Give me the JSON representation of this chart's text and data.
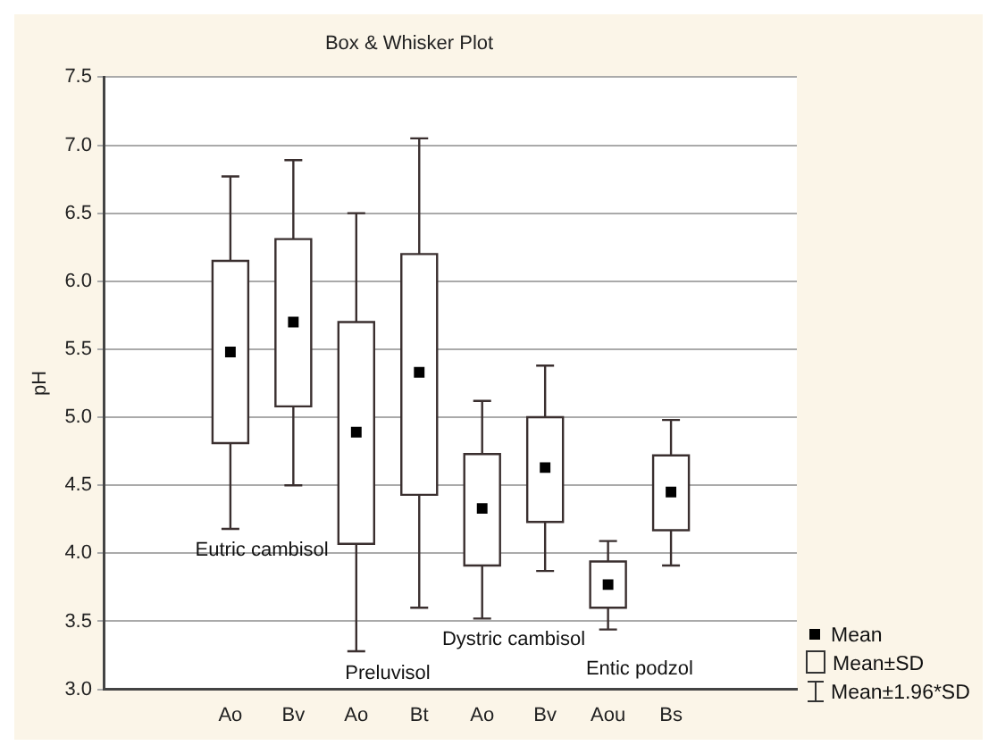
{
  "chart_data": {
    "type": "box",
    "title": "Box & Whisker Plot",
    "ylabel": "pH",
    "categories": [
      null,
      "Ao",
      "Bv",
      "Ao",
      "Bt",
      "Ao",
      "Bv",
      "Aou",
      "Bs",
      null
    ],
    "boxes": [
      null,
      {
        "low": 4.18,
        "q1": 4.81,
        "q3": 6.15,
        "high": 6.77,
        "mean": 5.48
      },
      {
        "low": 4.5,
        "q1": 5.08,
        "q3": 6.31,
        "high": 6.89,
        "mean": 5.7
      },
      {
        "low": 3.28,
        "q1": 4.07,
        "q3": 5.7,
        "high": 6.5,
        "mean": 4.89
      },
      {
        "low": 3.6,
        "q1": 4.43,
        "q3": 6.2,
        "high": 7.05,
        "mean": 5.33
      },
      {
        "low": 3.52,
        "q1": 3.91,
        "q3": 4.73,
        "high": 5.12,
        "mean": 4.33
      },
      {
        "low": 3.87,
        "q1": 4.23,
        "q3": 5.0,
        "high": 5.38,
        "mean": 4.63
      },
      {
        "low": 3.44,
        "q1": 3.6,
        "q3": 3.94,
        "high": 4.09,
        "mean": 3.77
      },
      {
        "low": 3.91,
        "q1": 4.17,
        "q3": 4.72,
        "high": 4.98,
        "mean": 4.45
      },
      null
    ],
    "color": "#ffffff",
    "ylim": [
      3,
      7.5
    ],
    "yticks": [
      {
        "value": 3,
        "label": "3.0"
      },
      {
        "value": 3.5,
        "label": "3.5"
      },
      {
        "value": 4,
        "label": "4.0"
      },
      {
        "value": 4.5,
        "label": "4.5"
      },
      {
        "value": 5,
        "label": "5.0"
      },
      {
        "value": 5.5,
        "label": "5.5"
      },
      {
        "value": 6,
        "label": "6.0"
      },
      {
        "value": 6.5,
        "label": "6.5"
      },
      {
        "value": 7,
        "label": "7.0"
      },
      {
        "value": 7.5,
        "label": "7.5"
      }
    ],
    "grid": "y",
    "marker": "square",
    "annotations": [
      "Eutric cambisol",
      "Preluvisol",
      "Dystric cambisol",
      "Entic podzol",
      "Mean",
      "Mean±SD",
      "Mean±1.96*SD"
    ]
  }
}
